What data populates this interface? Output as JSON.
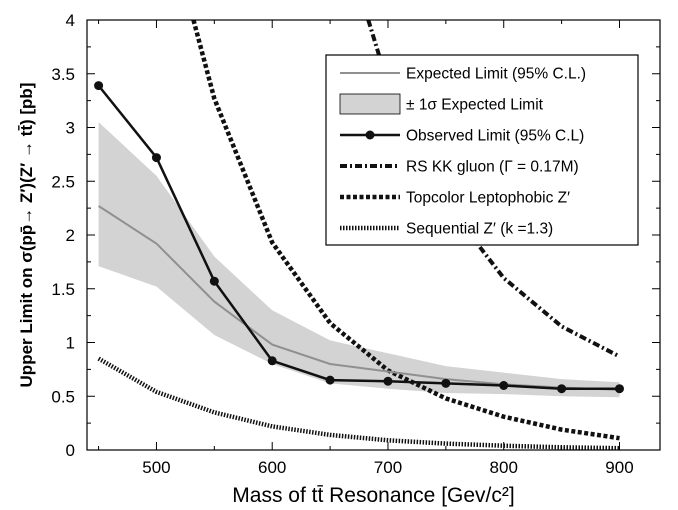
{
  "chart_data": {
    "type": "line",
    "xlabel": "Mass of tt̄ Resonance [Gev/c²]",
    "ylabel": "Upper Limit on σ(pp̄→ Z′)(Z′ → tt̄) [pb]",
    "xlim": [
      440,
      935
    ],
    "ylim": [
      0,
      4
    ],
    "xticks": [
      500,
      600,
      700,
      800,
      900
    ],
    "yticks": [
      0,
      0.5,
      1,
      1.5,
      2,
      2.5,
      3,
      3.5,
      4
    ],
    "grid": false,
    "legend_position": "top-right",
    "x": [
      450,
      500,
      550,
      600,
      650,
      700,
      750,
      800,
      850,
      900
    ],
    "series": [
      {
        "name": "Expected Limit (95% C.L.)",
        "style": "solid-gray",
        "color": "#909090",
        "values": [
          2.27,
          1.92,
          1.38,
          0.98,
          0.8,
          0.73,
          0.66,
          0.61,
          0.58,
          0.56
        ]
      },
      {
        "name": "± 1σ Expected Limit",
        "style": "band",
        "color": "#d3d3d3",
        "upper": [
          3.05,
          2.55,
          1.8,
          1.3,
          1.02,
          0.9,
          0.78,
          0.72,
          0.66,
          0.63
        ],
        "lower": [
          1.71,
          1.52,
          1.07,
          0.8,
          0.62,
          0.57,
          0.53,
          0.52,
          0.5,
          0.49
        ]
      },
      {
        "name": "Observed Limit (95% C.L)",
        "style": "solid-markers",
        "color": "#111111",
        "values": [
          3.39,
          2.72,
          1.57,
          0.83,
          0.65,
          0.64,
          0.62,
          0.6,
          0.57,
          0.57
        ]
      },
      {
        "name": "RS KK gluon (Γ = 0.17M)",
        "style": "dashdot",
        "color": "#111111",
        "curve": {
          "x": [
            683,
            700,
            750,
            800,
            850,
            900
          ],
          "y": [
            4.0,
            3.4,
            2.3,
            1.6,
            1.15,
            0.87
          ]
        }
      },
      {
        "name": "Topcolor Leptophobic Z′",
        "style": "dashed-thick",
        "color": "#111111",
        "curve": {
          "x": [
            532,
            550,
            600,
            650,
            700,
            750,
            800,
            850,
            900
          ],
          "y": [
            4.0,
            3.27,
            1.93,
            1.18,
            0.74,
            0.48,
            0.31,
            0.19,
            0.11
          ]
        }
      },
      {
        "name": "Sequential Z′ (k =1.3)",
        "style": "dotted-thick",
        "color": "#111111",
        "curve": {
          "x": [
            450,
            500,
            550,
            600,
            650,
            700,
            750,
            800,
            850,
            900
          ],
          "y": [
            0.85,
            0.54,
            0.35,
            0.22,
            0.14,
            0.09,
            0.06,
            0.04,
            0.025,
            0.017
          ]
        }
      }
    ]
  }
}
